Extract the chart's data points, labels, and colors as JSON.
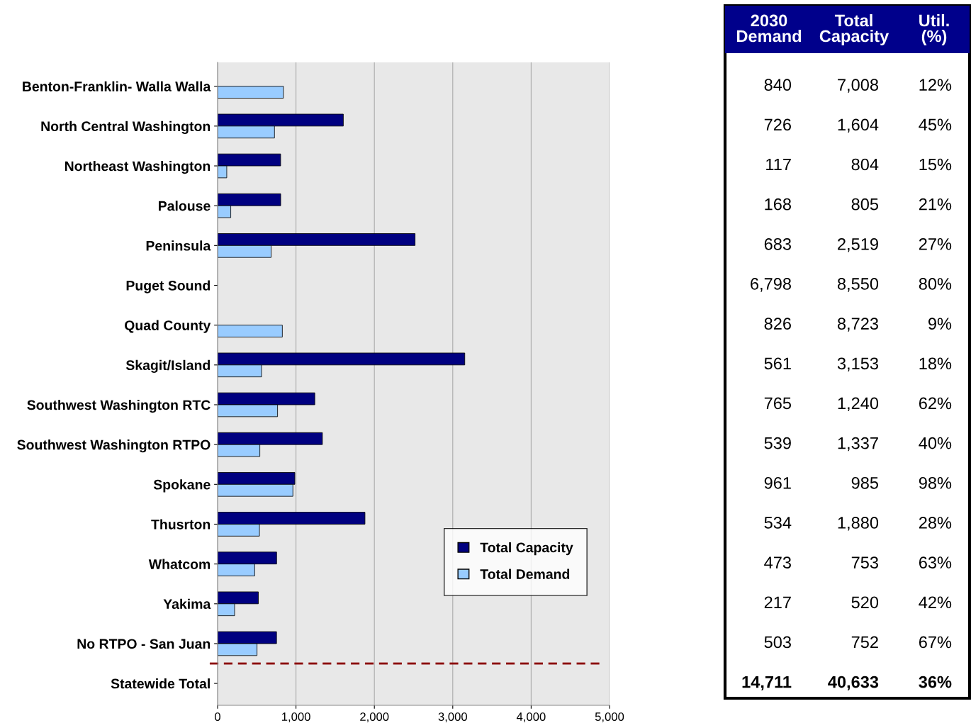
{
  "chart_data": [
    {
      "type": "bar",
      "orientation": "horizontal",
      "categories": [
        "Benton-Franklin- Walla Walla",
        "North Central Washington",
        "Northeast Washington",
        "Palouse",
        "Peninsula",
        "Puget Sound",
        "Quad County",
        "Skagit/Island",
        "Southwest Washington RTC",
        "Southwest Washington RTPO",
        "Spokane",
        "Thusrton",
        "Whatcom",
        "Yakima",
        "No RTPO - San Juan",
        "Statewide Total"
      ],
      "series": [
        {
          "name": "Total Capacity",
          "color": "#000080",
          "values": [
            null,
            1604,
            804,
            805,
            2519,
            null,
            null,
            3153,
            1240,
            1337,
            985,
            1880,
            753,
            520,
            752,
            null
          ]
        },
        {
          "name": "Total Demand",
          "color": "#99ccff",
          "values": [
            840,
            726,
            117,
            168,
            683,
            null,
            826,
            561,
            765,
            539,
            961,
            534,
            473,
            217,
            503,
            null
          ]
        }
      ],
      "xlim": [
        0,
        5000
      ],
      "xticks": [
        0,
        {
          "value": 1000,
          "label": "1,000"
        },
        {
          "value": 2000,
          "label": "2,000"
        },
        {
          "value": 3000,
          "label": "3,000"
        },
        {
          "value": 4000,
          "label": "4,000"
        },
        {
          "value": 5000,
          "label": "5,000"
        }
      ],
      "grid": "x",
      "legend": "bottom right"
    },
    {
      "type": "other",
      "annotations": [
        "2030 Demand",
        "Total Capacity",
        "Util. (%)",
        "840",
        "7,008",
        "12%",
        "726",
        "1,604",
        "45%",
        "117",
        "804",
        "15%",
        "168",
        "805",
        "21%",
        "683",
        "2,519",
        "27%",
        "6,798",
        "8,550",
        "80%",
        "826",
        "8,723",
        "9%",
        "561",
        "3,153",
        "18%",
        "765",
        "1,240",
        "62%",
        "539",
        "1,337",
        "40%",
        "961",
        "985",
        "98%",
        "534",
        "1,880",
        "28%",
        "473",
        "753",
        "63%",
        "217",
        "520",
        "42%",
        "503",
        "752",
        "67%",
        "14,711",
        "40,633",
        "36%"
      ]
    }
  ]
}
